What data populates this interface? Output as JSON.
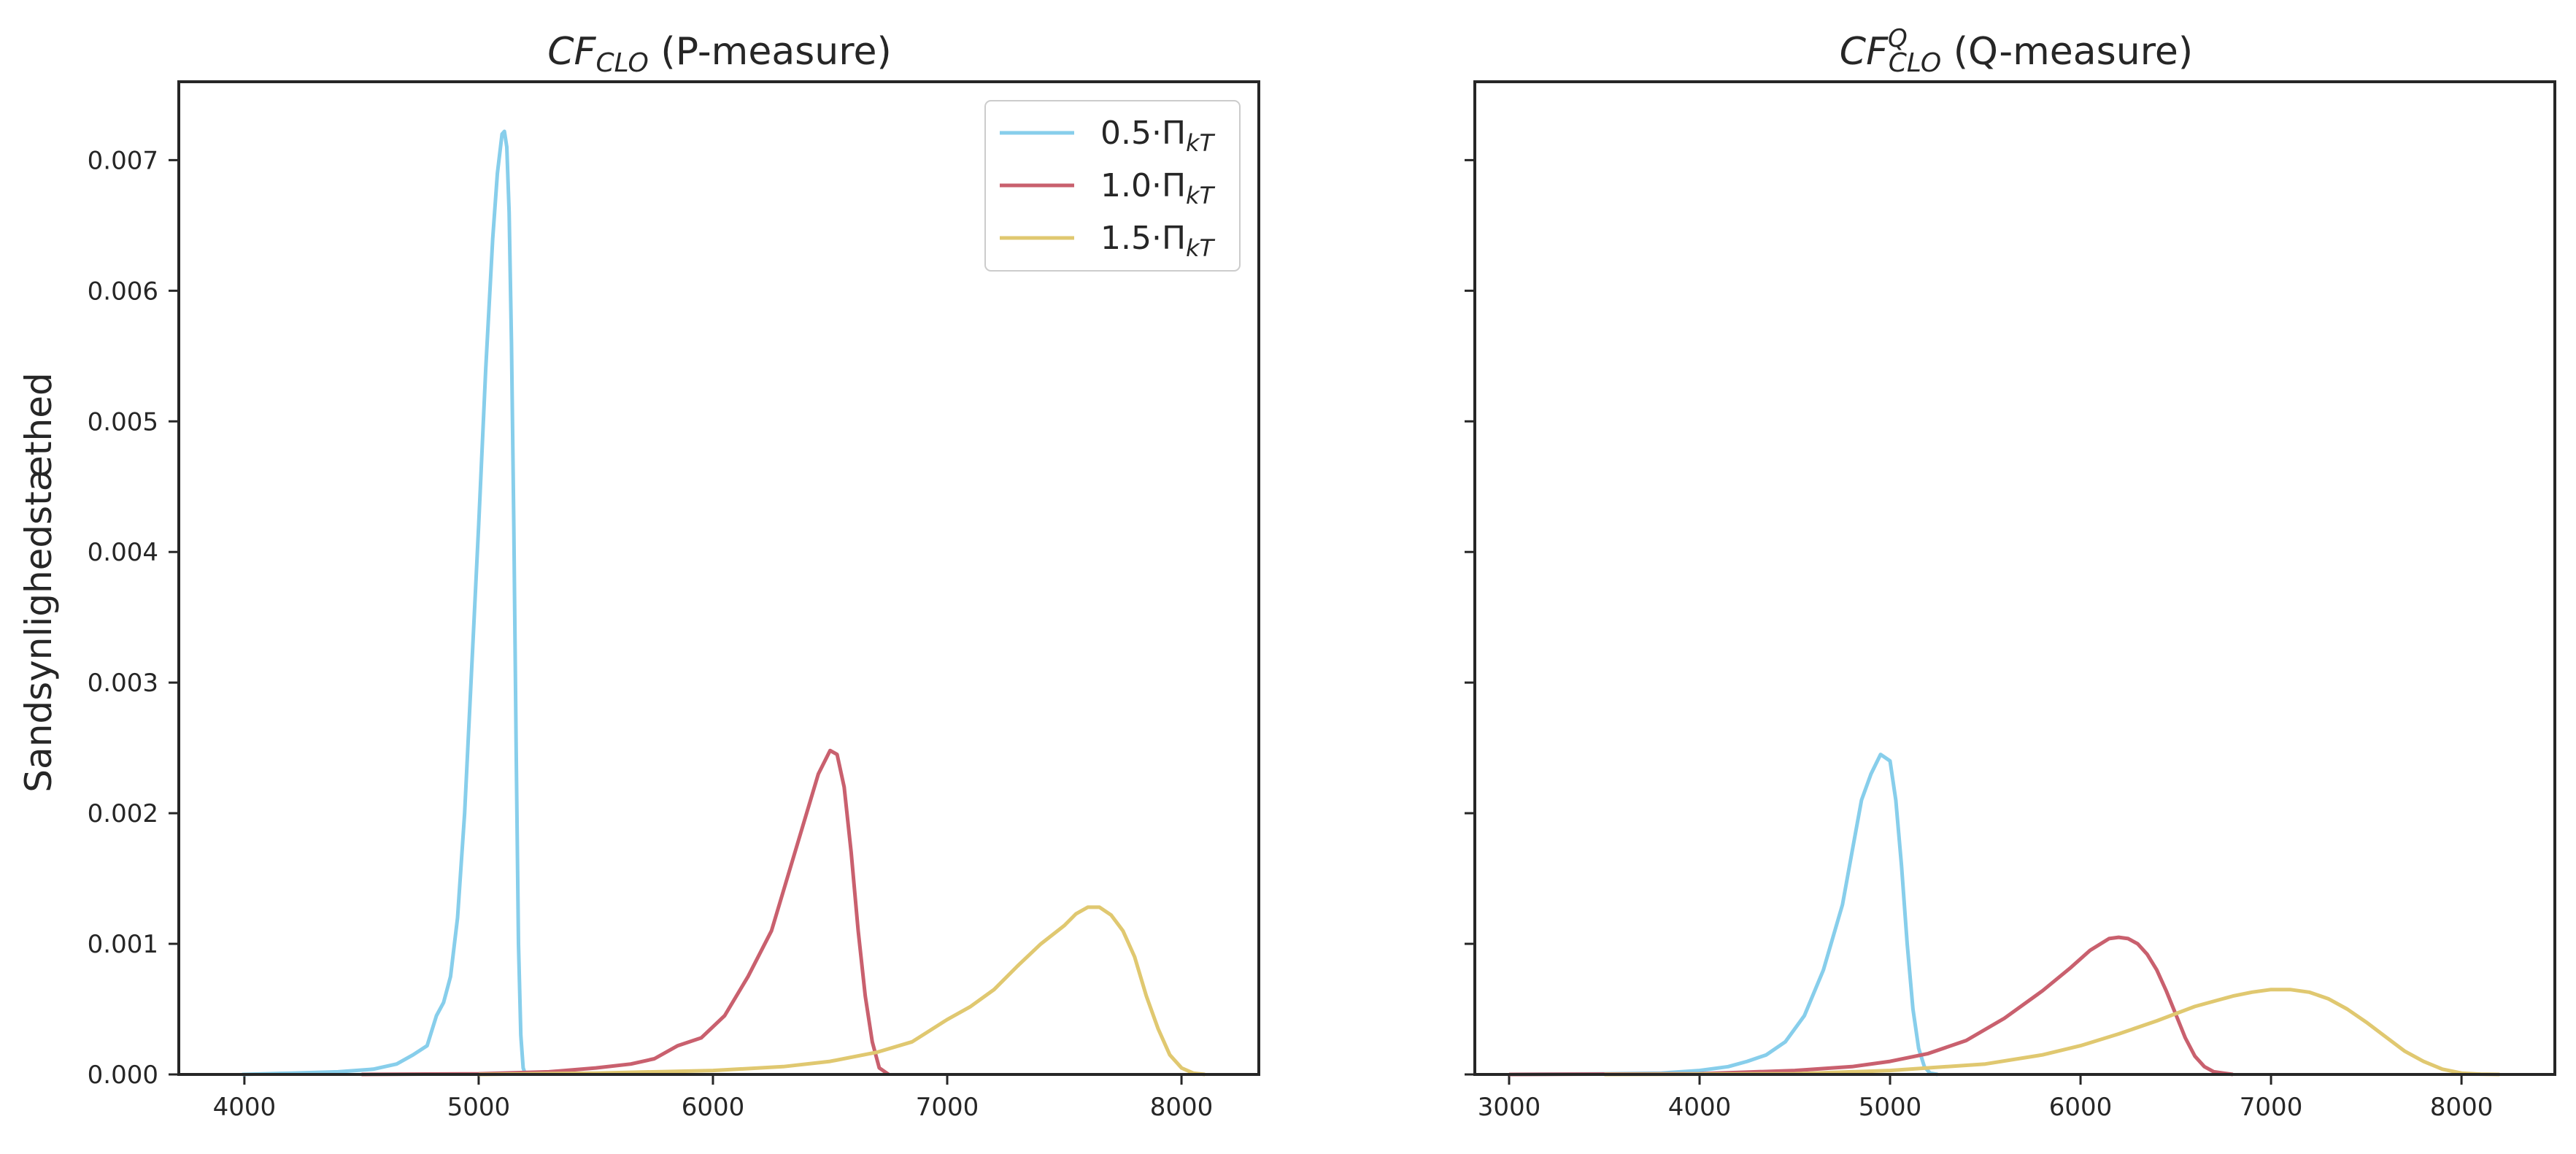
{
  "chart_data": [
    {
      "type": "line",
      "title_main": "CF",
      "title_sub": "CLO",
      "title_sup": "",
      "title_rest": " (P-measure)",
      "xlabel": "",
      "ylabel": "Sandsynlighedstæthed",
      "xlim": [
        3720,
        8330
      ],
      "ylim": [
        0,
        0.0076
      ],
      "xticks": [
        "4000",
        "5000",
        "6000",
        "7000",
        "8000"
      ],
      "yticks": [
        "0.000",
        "0.001",
        "0.002",
        "0.003",
        "0.004",
        "0.005",
        "0.006",
        "0.007"
      ],
      "grid": false,
      "legend_position": "top-right",
      "series": [
        {
          "name_main": "0.5·Π",
          "name_sub": "kT",
          "color": "#87CEEB",
          "x": [
            3990,
            4200,
            4400,
            4550,
            4650,
            4720,
            4780,
            4820,
            4850,
            4880,
            4910,
            4940,
            4970,
            5000,
            5030,
            5060,
            5080,
            5100,
            5110,
            5120,
            5130,
            5140,
            5150,
            5160,
            5170,
            5180,
            5190,
            5200
          ],
          "y": [
            0,
            1e-05,
            2e-05,
            4e-05,
            8e-05,
            0.00015,
            0.00022,
            0.00045,
            0.00055,
            0.00075,
            0.0012,
            0.002,
            0.0031,
            0.0042,
            0.0054,
            0.0064,
            0.0069,
            0.0072,
            0.00722,
            0.0071,
            0.0066,
            0.0056,
            0.0042,
            0.0025,
            0.001,
            0.0003,
            5e-05,
            0
          ]
        },
        {
          "name_main": "1.0·Π",
          "name_sub": "kT",
          "color": "#C9606E",
          "x": [
            4500,
            5000,
            5300,
            5500,
            5650,
            5750,
            5850,
            5950,
            6050,
            6150,
            6250,
            6350,
            6450,
            6500,
            6530,
            6560,
            6590,
            6620,
            6650,
            6680,
            6710,
            6750
          ],
          "y": [
            0,
            5e-06,
            2e-05,
            5e-05,
            8e-05,
            0.00012,
            0.00022,
            0.00028,
            0.00045,
            0.00075,
            0.0011,
            0.0017,
            0.0023,
            0.00248,
            0.00245,
            0.0022,
            0.0017,
            0.0011,
            0.0006,
            0.00025,
            5e-05,
            0
          ]
        },
        {
          "name_main": "1.5·Π",
          "name_sub": "kT",
          "color": "#E0C870",
          "x": [
            5000,
            5500,
            6000,
            6300,
            6500,
            6700,
            6850,
            7000,
            7100,
            7200,
            7300,
            7400,
            7500,
            7550,
            7600,
            7650,
            7700,
            7750,
            7800,
            7850,
            7900,
            7950,
            8000,
            8050,
            8100
          ],
          "y": [
            0,
            1e-05,
            3e-05,
            6e-05,
            0.0001,
            0.00017,
            0.00025,
            0.00042,
            0.00052,
            0.00065,
            0.00083,
            0.001,
            0.00114,
            0.00123,
            0.00128,
            0.00128,
            0.00122,
            0.0011,
            0.0009,
            0.0006,
            0.00035,
            0.00015,
            5e-05,
            1e-05,
            0
          ]
        }
      ]
    },
    {
      "type": "line",
      "title_main": "CF",
      "title_sub": "CLO",
      "title_sup": "Q",
      "title_rest": " (Q-measure)",
      "xlabel": "",
      "ylabel": "",
      "xlim": [
        2820,
        8490
      ],
      "ylim": [
        0,
        0.0076
      ],
      "xticks": [
        "3000",
        "4000",
        "5000",
        "6000",
        "7000",
        "8000"
      ],
      "yticks": [],
      "grid": false,
      "series": [
        {
          "name": "",
          "color": "#87CEEB",
          "x": [
            3000,
            3500,
            3800,
            4000,
            4150,
            4250,
            4350,
            4450,
            4550,
            4650,
            4750,
            4800,
            4850,
            4900,
            4950,
            5000,
            5030,
            5060,
            5090,
            5120,
            5150,
            5180,
            5210,
            5250
          ],
          "y": [
            0,
            5e-06,
            1e-05,
            3e-05,
            6e-05,
            0.0001,
            0.00015,
            0.00025,
            0.00045,
            0.0008,
            0.0013,
            0.0017,
            0.0021,
            0.0023,
            0.00245,
            0.0024,
            0.0021,
            0.0016,
            0.001,
            0.0005,
            0.0002,
            6e-05,
            1e-05,
            0
          ]
        },
        {
          "name": "",
          "color": "#C9606E",
          "x": [
            3000,
            4000,
            4500,
            4800,
            5000,
            5200,
            5400,
            5600,
            5800,
            5950,
            6050,
            6150,
            6200,
            6250,
            6300,
            6350,
            6400,
            6450,
            6500,
            6550,
            6600,
            6650,
            6700,
            6800
          ],
          "y": [
            0,
            5e-06,
            3e-05,
            6e-05,
            0.0001,
            0.00016,
            0.00026,
            0.00043,
            0.00064,
            0.00082,
            0.00095,
            0.00104,
            0.00105,
            0.00104,
            0.001,
            0.00092,
            0.0008,
            0.00064,
            0.00046,
            0.00028,
            0.00014,
            6e-05,
            2e-05,
            0
          ]
        },
        {
          "name": "",
          "color": "#E0C870",
          "x": [
            3500,
            4500,
            5000,
            5500,
            5800,
            6000,
            6200,
            6400,
            6600,
            6800,
            6900,
            7000,
            7100,
            7200,
            7300,
            7400,
            7500,
            7600,
            7700,
            7800,
            7900,
            8000,
            8100,
            8200
          ],
          "y": [
            0,
            5e-06,
            3e-05,
            8e-05,
            0.00015,
            0.00022,
            0.00031,
            0.00041,
            0.00052,
            0.0006,
            0.00063,
            0.00065,
            0.00065,
            0.00063,
            0.00058,
            0.0005,
            0.0004,
            0.00029,
            0.00018,
            0.0001,
            4e-05,
            1e-05,
            2e-06,
            0
          ]
        }
      ]
    }
  ]
}
